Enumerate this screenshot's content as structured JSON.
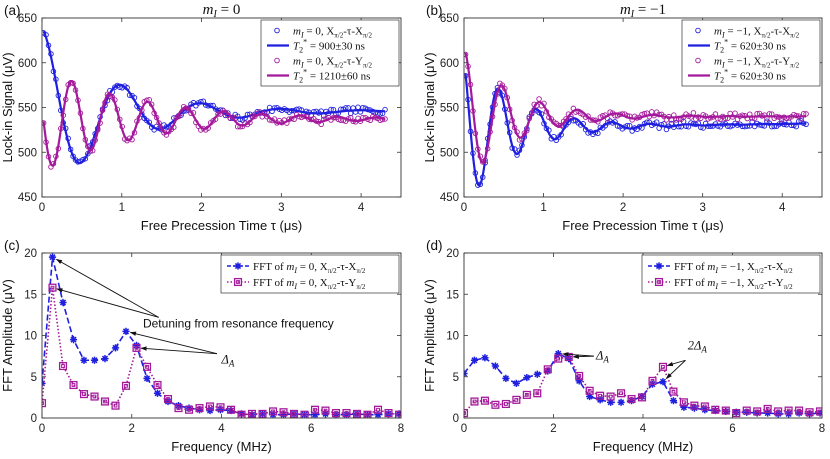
{
  "colors": {
    "blue": "#1f1fe0",
    "magenta": "#a4199b",
    "axis": "#333333"
  },
  "chart_data": [
    {
      "panel": "(a)",
      "type": "line",
      "title": "m_I = 0",
      "xlabel": "Free Precession Time τ (μs)",
      "ylabel": "Lock-in Signal (μV)",
      "xlim": [
        0,
        4.5
      ],
      "ylim": [
        450,
        650
      ],
      "xticks": [
        0,
        1,
        2,
        3,
        4
      ],
      "yticks": [
        450,
        500,
        550,
        600,
        650
      ],
      "legend_position": "top-right",
      "series": [
        {
          "name": "m_I = 0, X(π/2)-τ-X(π/2)",
          "kind": "markers",
          "color": "blue",
          "marker": "circle",
          "model": {
            "base": 543,
            "A": 95,
            "tau": 0.9,
            "f": 1.0,
            "phi": 0.0,
            "drift": 3,
            "xmax": 4.3,
            "noise": 3.5,
            "seed": 7
          }
        },
        {
          "name": "T2* = 900±30 ns",
          "kind": "line",
          "color": "blue",
          "model": {
            "base": 543,
            "A": 95,
            "tau": 0.9,
            "f": 1.0,
            "phi": 0.0,
            "drift": 3,
            "xmax": 4.3
          }
        },
        {
          "name": "m_I = 0, X(π/2)-τ-Y(π/2)",
          "kind": "markers",
          "color": "magenta",
          "marker": "circle",
          "model": {
            "base": 537,
            "A": 58,
            "tau": 1.21,
            "f": 2.1,
            "phi": 1.35,
            "drift": 0,
            "xmax": 4.3,
            "noise": 3.5,
            "seed": 11
          }
        },
        {
          "name": "T2* = 1210±60 ns",
          "kind": "line",
          "color": "magenta",
          "model": {
            "base": 537,
            "A": 58,
            "tau": 1.21,
            "f": 2.1,
            "phi": 1.35,
            "drift": 0,
            "xmax": 4.3
          }
        }
      ]
    },
    {
      "panel": "(b)",
      "type": "line",
      "title": "m_I = −1",
      "xlabel": "Free Precession Time τ (μs)",
      "ylabel": "Lock-in Signal (μV)",
      "xlim": [
        0,
        4.5
      ],
      "ylim": [
        450,
        650
      ],
      "xticks": [
        0,
        1,
        2,
        3,
        4
      ],
      "yticks": [
        450,
        500,
        550,
        600,
        650
      ],
      "legend_position": "top-right",
      "series": [
        {
          "name": "m_I = −1, X(π/2)-τ-X(π/2)",
          "kind": "markers",
          "color": "blue",
          "marker": "circle",
          "model": {
            "base": 527,
            "A": 88,
            "tau": 0.62,
            "f": 2.1,
            "phi": 0.52,
            "drift": 5,
            "xmax": 4.3,
            "noise": 3.5,
            "seed": 5
          }
        },
        {
          "name": "T2* = 620±30 ns",
          "kind": "line",
          "color": "blue",
          "model": {
            "base": 527,
            "A": 88,
            "tau": 0.62,
            "f": 2.1,
            "phi": 0.52,
            "drift": 5,
            "xmax": 4.3
          }
        },
        {
          "name": "m_I = −1, X(π/2)-τ-Y(π/2)",
          "kind": "markers",
          "color": "magenta",
          "marker": "circle",
          "model": {
            "base": 540,
            "A": 75,
            "tau": 0.62,
            "f": 2.1,
            "phi": -0.05,
            "drift": 0,
            "xmax": 4.3,
            "noise": 3.5,
            "seed": 13
          }
        },
        {
          "name": "T2* = 620±30 ns",
          "kind": "line",
          "color": "magenta",
          "model": {
            "base": 540,
            "A": 75,
            "tau": 0.62,
            "f": 2.1,
            "phi": -0.05,
            "drift": 0,
            "xmax": 4.3
          }
        }
      ]
    },
    {
      "panel": "(c)",
      "type": "line",
      "xlabel": "Frequency (MHz)",
      "ylabel": "FFT Amplitude (μV)",
      "xlim": [
        0,
        8
      ],
      "ylim": [
        0,
        20
      ],
      "xticks": [
        0,
        2,
        4,
        6,
        8
      ],
      "yticks": [
        0,
        5,
        10,
        15,
        20
      ],
      "legend_position": "top-right",
      "series": [
        {
          "name": "FFT of m_I = 0, X(π/2)-τ-X(π/2)",
          "kind": "dashed-stars",
          "color": "blue",
          "x": [
            0.0,
            0.234,
            0.468,
            0.702,
            0.936,
            1.17,
            1.404,
            1.638,
            1.872,
            2.106,
            2.34,
            2.574,
            2.808,
            3.042,
            3.276,
            3.51,
            3.744,
            3.978,
            4.212,
            4.446,
            4.68,
            4.914,
            5.148,
            5.382,
            5.616,
            5.85,
            6.084,
            6.318,
            6.552,
            6.786,
            7.02,
            7.254,
            7.488,
            7.722,
            7.956
          ],
          "y": [
            4.2,
            19.5,
            14.0,
            9.5,
            7.0,
            7.0,
            7.2,
            8.5,
            10.5,
            8.8,
            4.8,
            3.0,
            2.0,
            1.5,
            1.2,
            1.0,
            0.9,
            1.0,
            0.9,
            0.5,
            0.4,
            0.5,
            0.4,
            0.4,
            0.5,
            0.4,
            0.4,
            0.5,
            0.4,
            0.4,
            0.5,
            0.4,
            0.4,
            0.5,
            0.5
          ]
        },
        {
          "name": "FFT of m_I = 0, X(π/2)-τ-Y(π/2)",
          "kind": "dotted-squares",
          "color": "magenta",
          "x": [
            0.0,
            0.234,
            0.468,
            0.702,
            0.936,
            1.17,
            1.404,
            1.638,
            1.872,
            2.106,
            2.34,
            2.574,
            2.808,
            3.042,
            3.276,
            3.51,
            3.744,
            3.978,
            4.212,
            4.446,
            4.68,
            4.914,
            5.148,
            5.382,
            5.616,
            5.85,
            6.084,
            6.318,
            6.552,
            6.786,
            7.02,
            7.254,
            7.488,
            7.722,
            7.956
          ],
          "y": [
            1.8,
            15.8,
            6.3,
            4.0,
            2.9,
            2.6,
            2.0,
            1.5,
            3.9,
            8.5,
            6.2,
            4.0,
            2.3,
            1.2,
            1.0,
            1.2,
            1.4,
            1.3,
            1.0,
            0.4,
            0.5,
            0.5,
            0.8,
            0.7,
            0.5,
            0.4,
            1.0,
            0.9,
            0.6,
            0.6,
            0.5,
            0.4,
            1.0,
            0.6,
            0.4
          ]
        }
      ],
      "annotations": [
        {
          "text": "Detuning from resonance frequency",
          "math": false,
          "arrows_to": [
            [
              0.234,
              19.5
            ],
            [
              0.234,
              15.8
            ]
          ]
        },
        {
          "text": "Δ_A",
          "math": true,
          "arrows_to": [
            [
              1.872,
              10.5
            ],
            [
              2.106,
              8.5
            ]
          ]
        }
      ]
    },
    {
      "panel": "(d)",
      "type": "line",
      "xlabel": "Frequency (MHz)",
      "ylabel": "FFT Amplitude (μV)",
      "xlim": [
        0,
        8
      ],
      "ylim": [
        0,
        20
      ],
      "xticks": [
        0,
        2,
        4,
        6,
        8
      ],
      "yticks": [
        0,
        5,
        10,
        15,
        20
      ],
      "legend_position": "top-right",
      "series": [
        {
          "name": "FFT of m_I = −1, X(π/2)-τ-X(π/2)",
          "kind": "dashed-stars",
          "color": "blue",
          "x": [
            0.0,
            0.234,
            0.468,
            0.702,
            0.936,
            1.17,
            1.404,
            1.638,
            1.872,
            2.106,
            2.34,
            2.574,
            2.808,
            3.042,
            3.276,
            3.51,
            3.744,
            3.978,
            4.212,
            4.446,
            4.68,
            4.914,
            5.148,
            5.382,
            5.616,
            5.85,
            6.084,
            6.318,
            6.552,
            6.786,
            7.02,
            7.254,
            7.488,
            7.722,
            7.956
          ],
          "y": [
            5.4,
            7.0,
            7.3,
            6.3,
            4.8,
            4.2,
            4.9,
            5.3,
            5.7,
            7.8,
            7.2,
            4.5,
            2.6,
            2.2,
            1.9,
            1.9,
            2.1,
            2.6,
            4.1,
            4.4,
            2.1,
            1.3,
            1.2,
            1.0,
            0.9,
            0.8,
            0.7,
            0.7,
            0.6,
            0.6,
            0.5,
            0.5,
            0.6,
            0.5,
            0.6
          ]
        },
        {
          "name": "FFT of m_I = −1, X(π/2)-τ-Y(π/2)",
          "kind": "dotted-squares",
          "color": "magenta",
          "x": [
            0.0,
            0.234,
            0.468,
            0.702,
            0.936,
            1.17,
            1.404,
            1.638,
            1.872,
            2.106,
            2.34,
            2.574,
            2.808,
            3.042,
            3.276,
            3.51,
            3.744,
            3.978,
            4.212,
            4.446,
            4.68,
            4.914,
            5.148,
            5.382,
            5.616,
            5.85,
            6.084,
            6.318,
            6.552,
            6.786,
            7.02,
            7.254,
            7.488,
            7.722,
            7.956
          ],
          "y": [
            0.6,
            2.0,
            2.1,
            1.6,
            1.7,
            2.2,
            2.8,
            3.0,
            5.9,
            7.2,
            7.4,
            5.1,
            3.3,
            2.7,
            2.6,
            3.0,
            2.3,
            2.5,
            4.5,
            6.2,
            3.2,
            1.9,
            1.5,
            1.4,
            1.0,
            0.9,
            0.6,
            0.9,
            0.8,
            1.1,
            0.8,
            0.9,
            0.9,
            0.7,
            0.8
          ]
        }
      ],
      "annotations": [
        {
          "text": "Δ_A",
          "math": true,
          "arrows_to": [
            [
              2.106,
              7.8
            ],
            [
              2.34,
              7.4
            ]
          ]
        },
        {
          "text": "2Δ_A",
          "math": true,
          "arrows_to": [
            [
              4.446,
              6.2
            ],
            [
              4.446,
              4.4
            ]
          ]
        }
      ]
    }
  ]
}
